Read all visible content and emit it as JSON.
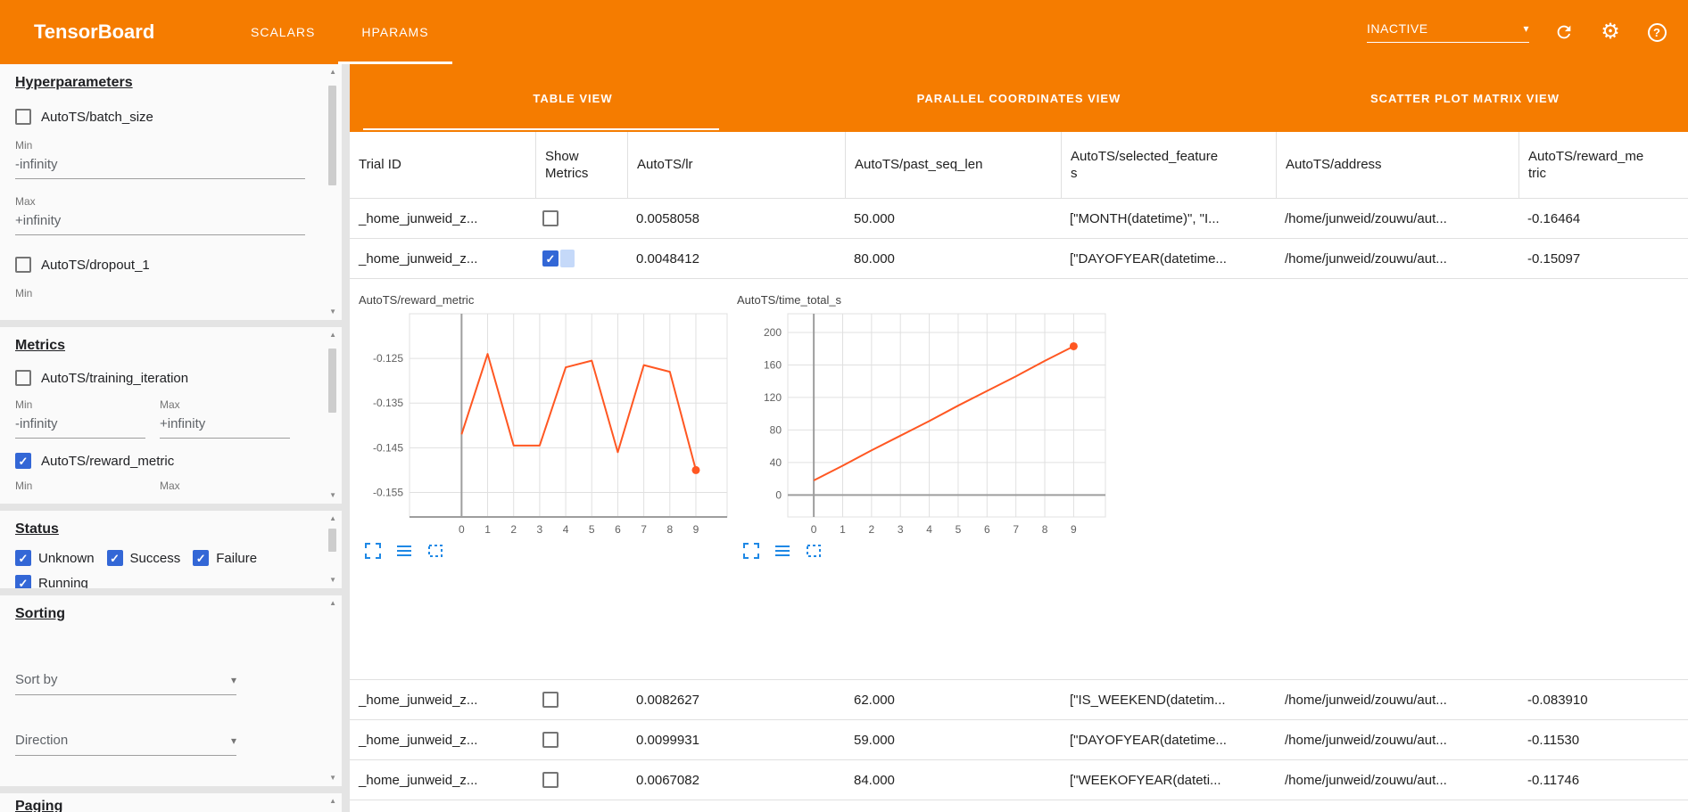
{
  "header": {
    "title": "TensorBoard",
    "nav_tabs": [
      {
        "label": "SCALARS",
        "active": false
      },
      {
        "label": "HPARAMS",
        "active": true
      }
    ],
    "run_selector": {
      "value": "INACTIVE"
    }
  },
  "icons": {
    "caret_down": "▾",
    "gear": "⚙",
    "help": "?",
    "scroll_up": "▲",
    "scroll_down": "▼"
  },
  "colors": {
    "header_orange": "#f57c00",
    "chart_line": "#ff5722",
    "checkbox_blue": "#3367d6",
    "chart_tool_blue": "#1e88e5"
  },
  "sidebar": {
    "sections": {
      "hyperparameters": {
        "heading": "Hyperparameters",
        "params": [
          {
            "label": "AutoTS/batch_size",
            "checked": false,
            "min_label": "Min",
            "min_value": "-infinity",
            "max_label": "Max",
            "max_value": "+infinity"
          },
          {
            "label": "AutoTS/dropout_1",
            "checked": false,
            "min_label": "Min"
          }
        ]
      },
      "metrics": {
        "heading": "Metrics",
        "items": [
          {
            "label": "AutoTS/training_iteration",
            "checked": false,
            "min_label": "Min",
            "max_label": "Max",
            "min_value": "-infinity",
            "max_value": "+infinity"
          },
          {
            "label": "AutoTS/reward_metric",
            "checked": true,
            "min_label": "Min",
            "max_label": "Max"
          }
        ]
      },
      "status": {
        "heading": "Status",
        "options": [
          {
            "label": "Unknown",
            "checked": true
          },
          {
            "label": "Success",
            "checked": true
          },
          {
            "label": "Failure",
            "checked": true
          },
          {
            "label": "Running",
            "checked": true
          }
        ]
      },
      "sorting": {
        "heading": "Sorting",
        "sort_by": {
          "label": "Sort by"
        },
        "direction": {
          "label": "Direction"
        }
      },
      "paging": {
        "heading": "Paging"
      }
    }
  },
  "main": {
    "view_tabs": [
      {
        "label": "TABLE VIEW",
        "active": true
      },
      {
        "label": "PARALLEL COORDINATES VIEW",
        "active": false
      },
      {
        "label": "SCATTER PLOT MATRIX VIEW",
        "active": false
      }
    ],
    "table": {
      "columns": [
        "Trial ID",
        "Show Metrics",
        "AutoTS/lr",
        "AutoTS/past_seq_len",
        "AutoTS/selected_features",
        "AutoTS/address",
        "AutoTS/reward_metric"
      ],
      "rows_top": [
        {
          "trial_id": "_home_junweid_z...",
          "show_metrics": false,
          "lr": "0.0058058",
          "past_seq_len": "50.000",
          "selected_features": "[\"MONTH(datetime)\", \"I...",
          "address": "/home/junweid/zouwu/aut...",
          "reward_metric": "-0.16464"
        },
        {
          "trial_id": "_home_junweid_z...",
          "show_metrics": true,
          "lr": "0.0048412",
          "past_seq_len": "80.000",
          "selected_features": "[\"DAYOFYEAR(datetime...",
          "address": "/home/junweid/zouwu/aut...",
          "reward_metric": "-0.15097"
        }
      ],
      "rows_bottom": [
        {
          "trial_id": "_home_junweid_z...",
          "show_metrics": false,
          "lr": "0.0082627",
          "past_seq_len": "62.000",
          "selected_features": "[\"IS_WEEKEND(datetim...",
          "address": "/home/junweid/zouwu/aut...",
          "reward_metric": "-0.083910"
        },
        {
          "trial_id": "_home_junweid_z...",
          "show_metrics": false,
          "lr": "0.0099931",
          "past_seq_len": "59.000",
          "selected_features": "[\"DAYOFYEAR(datetime...",
          "address": "/home/junweid/zouwu/aut...",
          "reward_metric": "-0.11530"
        },
        {
          "trial_id": "_home_junweid_z...",
          "show_metrics": false,
          "lr": "0.0067082",
          "past_seq_len": "84.000",
          "selected_features": "[\"WEEKOFYEAR(dateti...",
          "address": "/home/junweid/zouwu/aut...",
          "reward_metric": "-0.11746"
        }
      ]
    }
  },
  "chart_data": [
    {
      "type": "line",
      "title": "AutoTS/reward_metric",
      "x": [
        0,
        1,
        2,
        3,
        4,
        5,
        6,
        7,
        8,
        9
      ],
      "values": [
        -0.142,
        -0.124,
        -0.1445,
        -0.1445,
        -0.127,
        -0.1255,
        -0.146,
        -0.1265,
        -0.128,
        -0.15
      ],
      "xlim": [
        -2,
        10.2
      ],
      "ylim": [
        -0.1605,
        -0.115
      ],
      "xticks": [
        0,
        1,
        2,
        3,
        4,
        5,
        6,
        7,
        8,
        9
      ],
      "yticks": [
        -0.125,
        -0.135,
        -0.145,
        -0.155
      ],
      "ytick_labels": [
        "-0.125",
        "-0.135",
        "-0.145",
        "-0.155"
      ],
      "x_axis_at": -0.1605,
      "y_axis_at": 0,
      "color": "#ff5722",
      "grid": true,
      "legend": false,
      "end_marker": true
    },
    {
      "type": "line",
      "title": "AutoTS/time_total_s",
      "x": [
        0,
        1,
        2,
        3,
        4,
        5,
        6,
        7,
        8,
        9
      ],
      "values": [
        18,
        36,
        55,
        73,
        91,
        110,
        128,
        146,
        165,
        183
      ],
      "xlim": [
        -0.9,
        10.1
      ],
      "ylim": [
        -27,
        223
      ],
      "xticks": [
        0,
        1,
        2,
        3,
        4,
        5,
        6,
        7,
        8,
        9
      ],
      "yticks": [
        0,
        40,
        80,
        120,
        160,
        200
      ],
      "ytick_labels": [
        "0",
        "40",
        "80",
        "120",
        "160",
        "200"
      ],
      "x_axis_at": 0,
      "y_axis_at": 0,
      "color": "#ff5722",
      "grid": true,
      "legend": false,
      "end_marker": true
    }
  ]
}
